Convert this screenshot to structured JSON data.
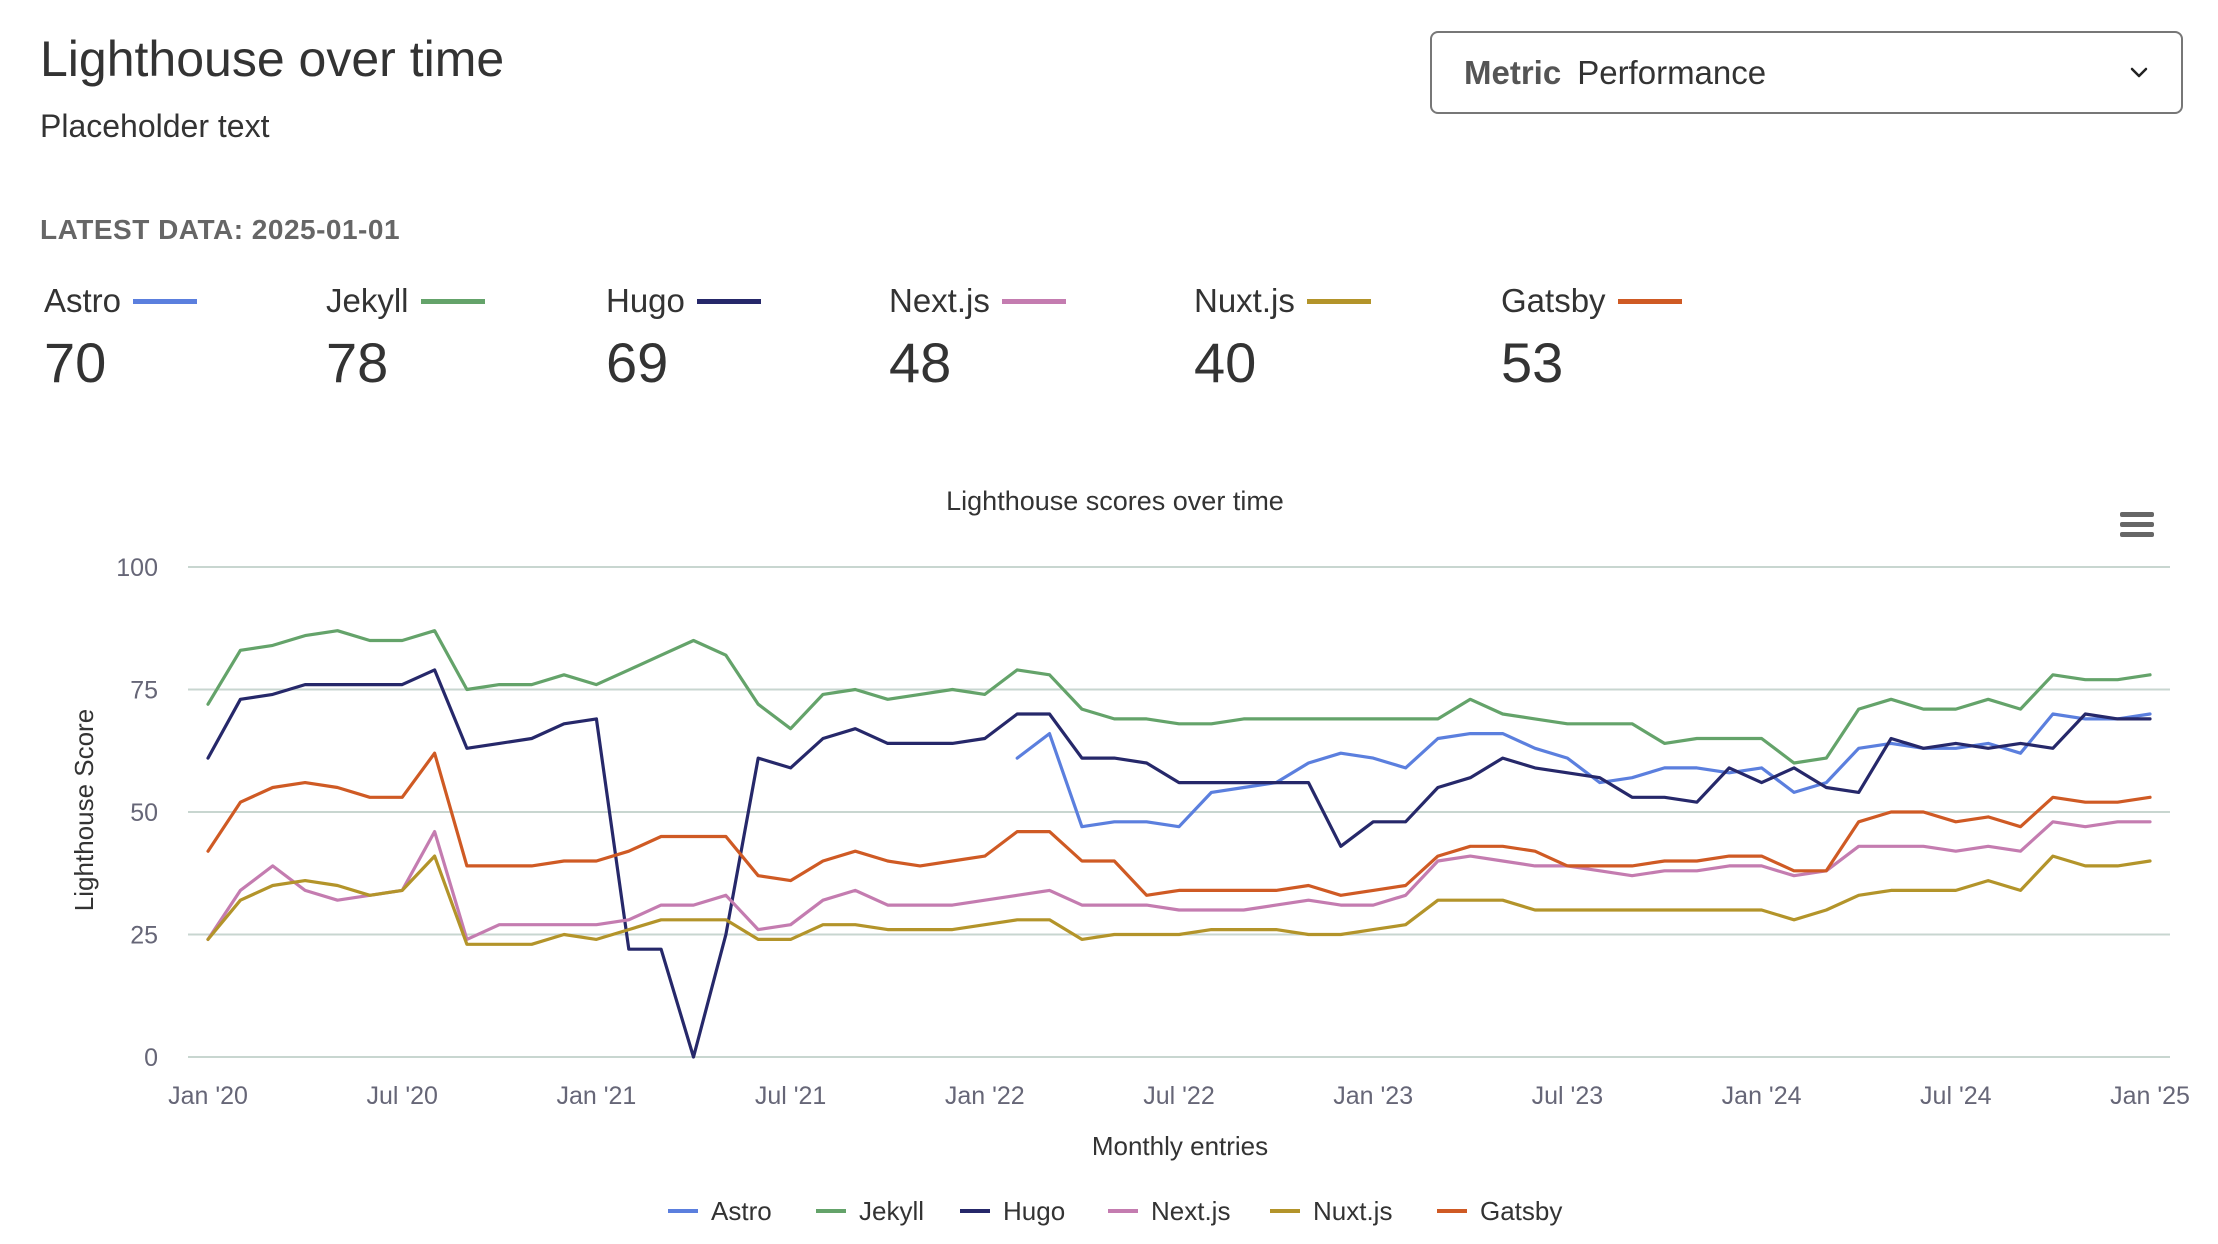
{
  "header": {
    "title": "Lighthouse over time",
    "subtitle": "Placeholder text",
    "latest_label": "LATEST DATA: 2025-01-01"
  },
  "metric_select": {
    "label": "Metric",
    "value": "Performance"
  },
  "stats": [
    {
      "name": "Astro",
      "value": "70",
      "color": "#5b7fde"
    },
    {
      "name": "Jekyll",
      "value": "78",
      "color": "#64a36a"
    },
    {
      "name": "Hugo",
      "value": "69",
      "color": "#26286a"
    },
    {
      "name": "Next.js",
      "value": "48",
      "color": "#c47cb0"
    },
    {
      "name": "Nuxt.js",
      "value": "40",
      "color": "#b3942a"
    },
    {
      "name": "Gatsby",
      "value": "53",
      "color": "#cf5a24"
    }
  ],
  "chart_data": {
    "type": "line",
    "title": "Lighthouse scores over time",
    "xlabel": "Monthly entries",
    "ylabel": "Lighthouse Score",
    "ylim": [
      0,
      100
    ],
    "yticks": [
      0,
      25,
      50,
      75,
      100
    ],
    "xticks": [
      {
        "month": 0,
        "label": "Jan '20"
      },
      {
        "month": 6,
        "label": "Jul '20"
      },
      {
        "month": 12,
        "label": "Jan '21"
      },
      {
        "month": 18,
        "label": "Jul '21"
      },
      {
        "month": 24,
        "label": "Jan '22"
      },
      {
        "month": 30,
        "label": "Jul '22"
      },
      {
        "month": 36,
        "label": "Jan '23"
      },
      {
        "month": 42,
        "label": "Jul '23"
      },
      {
        "month": 48,
        "label": "Jan '24"
      },
      {
        "month": 54,
        "label": "Jul '24"
      },
      {
        "month": 60,
        "label": "Jan '25"
      }
    ],
    "x_start": "2020-01",
    "x_end": "2025-01",
    "grid": true,
    "legend_position": "bottom",
    "series": [
      {
        "name": "Astro",
        "color": "#5b7fde",
        "values": [
          null,
          null,
          null,
          null,
          null,
          null,
          null,
          null,
          null,
          null,
          null,
          null,
          null,
          null,
          null,
          null,
          null,
          null,
          null,
          null,
          null,
          null,
          null,
          null,
          null,
          61,
          66,
          47,
          48,
          48,
          47,
          54,
          55,
          56,
          60,
          62,
          61,
          59,
          65,
          66,
          66,
          63,
          61,
          56,
          57,
          59,
          59,
          58,
          59,
          54,
          56,
          63,
          64,
          63,
          63,
          64,
          62,
          70,
          69,
          69,
          70
        ]
      },
      {
        "name": "Jekyll",
        "color": "#64a36a",
        "values": [
          72,
          83,
          84,
          86,
          87,
          85,
          85,
          87,
          75,
          76,
          76,
          78,
          76,
          79,
          82,
          85,
          82,
          72,
          67,
          74,
          75,
          73,
          74,
          75,
          74,
          79,
          78,
          71,
          69,
          69,
          68,
          68,
          69,
          69,
          69,
          69,
          69,
          69,
          69,
          73,
          70,
          69,
          68,
          68,
          68,
          64,
          65,
          65,
          65,
          60,
          61,
          71,
          73,
          71,
          71,
          73,
          71,
          78,
          77,
          77,
          78
        ]
      },
      {
        "name": "Hugo",
        "color": "#26286a",
        "values": [
          61,
          73,
          74,
          76,
          76,
          76,
          76,
          79,
          63,
          64,
          65,
          68,
          69,
          22,
          22,
          0,
          25,
          61,
          59,
          65,
          67,
          64,
          64,
          64,
          65,
          70,
          70,
          61,
          61,
          60,
          56,
          56,
          56,
          56,
          56,
          43,
          48,
          48,
          55,
          57,
          61,
          59,
          58,
          57,
          53,
          53,
          52,
          59,
          56,
          59,
          55,
          54,
          65,
          63,
          64,
          63,
          64,
          63,
          70,
          69,
          69
        ]
      },
      {
        "name": "Next.js",
        "color": "#c47cb0",
        "values": [
          24,
          34,
          39,
          34,
          32,
          33,
          34,
          46,
          24,
          27,
          27,
          27,
          27,
          28,
          31,
          31,
          33,
          26,
          27,
          32,
          34,
          31,
          31,
          31,
          32,
          33,
          34,
          31,
          31,
          31,
          30,
          30,
          30,
          31,
          32,
          31,
          31,
          33,
          40,
          41,
          40,
          39,
          39,
          38,
          37,
          38,
          38,
          39,
          39,
          37,
          38,
          43,
          43,
          43,
          42,
          43,
          42,
          48,
          47,
          48,
          48
        ]
      },
      {
        "name": "Nuxt.js",
        "color": "#b3942a",
        "values": [
          24,
          32,
          35,
          36,
          35,
          33,
          34,
          41,
          23,
          23,
          23,
          25,
          24,
          26,
          28,
          28,
          28,
          24,
          24,
          27,
          27,
          26,
          26,
          26,
          27,
          28,
          28,
          24,
          25,
          25,
          25,
          26,
          26,
          26,
          25,
          25,
          26,
          27,
          32,
          32,
          32,
          30,
          30,
          30,
          30,
          30,
          30,
          30,
          30,
          28,
          30,
          33,
          34,
          34,
          34,
          36,
          34,
          41,
          39,
          39,
          40
        ]
      },
      {
        "name": "Gatsby",
        "color": "#cf5a24",
        "values": [
          42,
          52,
          55,
          56,
          55,
          53,
          53,
          62,
          39,
          39,
          39,
          40,
          40,
          42,
          45,
          45,
          45,
          37,
          36,
          40,
          42,
          40,
          39,
          40,
          41,
          46,
          46,
          40,
          40,
          33,
          34,
          34,
          34,
          34,
          35,
          33,
          34,
          35,
          41,
          43,
          43,
          42,
          39,
          39,
          39,
          40,
          40,
          41,
          41,
          38,
          38,
          48,
          50,
          50,
          48,
          49,
          47,
          53,
          52,
          52,
          53
        ]
      }
    ]
  }
}
